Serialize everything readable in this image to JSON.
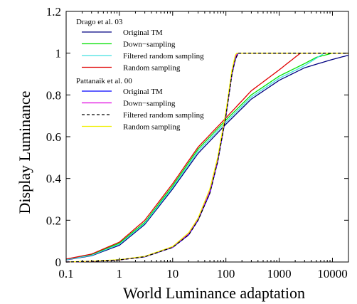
{
  "chart_data": {
    "type": "line",
    "title": "",
    "xlabel": "World Luminance adaptation",
    "ylabel": "Display Luminance",
    "x_scale": "log",
    "xlim": [
      0.1,
      20000
    ],
    "ylim": [
      0,
      1.2
    ],
    "grid": false,
    "legend_placement": "top-left",
    "x_ticks": [
      0.1,
      1,
      10,
      100,
      1000,
      10000
    ],
    "x_tick_labels": [
      "0.1",
      "1",
      "10",
      "100",
      "1000",
      "10000"
    ],
    "y_ticks": [
      0,
      0.2,
      0.4,
      0.6,
      0.8,
      1,
      1.2
    ],
    "y_tick_labels": [
      "0",
      "0.2",
      "0.4",
      "0.6",
      "0.8",
      "1",
      "1.2"
    ],
    "legend_groups": [
      {
        "heading": "Drago et al. 03",
        "entries": [
          {
            "name": "Original TM",
            "color": "#000080",
            "dash": "solid"
          },
          {
            "name": "Down−sampling",
            "color": "#00e000",
            "dash": "solid"
          },
          {
            "name": "Filtered random sampling",
            "color": "#40e0e0",
            "dash": "solid"
          },
          {
            "name": "Random sampling",
            "color": "#e00000",
            "dash": "solid"
          }
        ]
      },
      {
        "heading": "Pattanaik et al. 00",
        "entries": [
          {
            "name": "Original TM",
            "color": "#0000ff",
            "dash": "solid"
          },
          {
            "name": "Down−sampling",
            "color": "#e000e0",
            "dash": "solid"
          },
          {
            "name": "Filtered random sampling",
            "color": "#000000",
            "dash": "dashed"
          },
          {
            "name": "Random sampling",
            "color": "#f0f000",
            "dash": "solid"
          }
        ]
      }
    ],
    "series": [
      {
        "group": 0,
        "name": "Original TM",
        "color": "#000080",
        "dash": "solid",
        "x": [
          0.1,
          0.3,
          1,
          3,
          10,
          30,
          100,
          300,
          1000,
          3000,
          10000,
          20000
        ],
        "y": [
          0.01,
          0.03,
          0.08,
          0.18,
          0.35,
          0.52,
          0.66,
          0.78,
          0.87,
          0.93,
          0.97,
          0.99
        ]
      },
      {
        "group": 0,
        "name": "Down−sampling",
        "color": "#00e000",
        "dash": "solid",
        "x": [
          0.1,
          0.3,
          1,
          3,
          10,
          30,
          100,
          300,
          1000,
          3000,
          5000,
          10000,
          20000
        ],
        "y": [
          0.012,
          0.035,
          0.09,
          0.19,
          0.365,
          0.54,
          0.68,
          0.8,
          0.89,
          0.95,
          0.98,
          1.0,
          1.0
        ]
      },
      {
        "group": 0,
        "name": "Filtered random sampling",
        "color": "#40e0e0",
        "dash": "solid",
        "x": [
          0.1,
          0.3,
          1,
          3,
          10,
          30,
          100,
          300,
          1000,
          3000,
          7000,
          20000
        ],
        "y": [
          0.011,
          0.032,
          0.085,
          0.185,
          0.357,
          0.53,
          0.67,
          0.79,
          0.88,
          0.94,
          1.0,
          1.0
        ]
      },
      {
        "group": 0,
        "name": "Random sampling",
        "color": "#e00000",
        "dash": "solid",
        "x": [
          0.1,
          0.3,
          1,
          3,
          10,
          30,
          100,
          300,
          1000,
          2500,
          20000
        ],
        "y": [
          0.014,
          0.038,
          0.095,
          0.2,
          0.375,
          0.55,
          0.69,
          0.82,
          0.92,
          1.0,
          1.0
        ]
      },
      {
        "group": 1,
        "name": "Original TM",
        "color": "#0000ff",
        "dash": "solid",
        "x": [
          0.1,
          0.3,
          1,
          3,
          10,
          20,
          30,
          50,
          70,
          100,
          130,
          150,
          170,
          20000
        ],
        "y": [
          0.0,
          0.003,
          0.01,
          0.025,
          0.07,
          0.13,
          0.2,
          0.33,
          0.48,
          0.7,
          0.9,
          0.97,
          1.0,
          1.0
        ]
      },
      {
        "group": 1,
        "name": "Down−sampling",
        "color": "#e000e0",
        "dash": "solid",
        "x": [
          0.1,
          0.3,
          1,
          3,
          10,
          20,
          30,
          50,
          70,
          100,
          130,
          150,
          165,
          20000
        ],
        "y": [
          0.0,
          0.003,
          0.01,
          0.026,
          0.072,
          0.135,
          0.205,
          0.34,
          0.49,
          0.71,
          0.91,
          0.98,
          1.0,
          1.0
        ]
      },
      {
        "group": 1,
        "name": "Random sampling",
        "color": "#f0f000",
        "dash": "solid",
        "x": [
          0.1,
          0.3,
          1,
          3,
          10,
          20,
          30,
          50,
          70,
          100,
          130,
          150,
          160,
          20000
        ],
        "y": [
          0.0,
          0.004,
          0.011,
          0.027,
          0.074,
          0.14,
          0.21,
          0.35,
          0.5,
          0.72,
          0.92,
          0.99,
          1.0,
          1.0
        ]
      },
      {
        "group": 1,
        "name": "Filtered random sampling",
        "color": "#000000",
        "dash": "dashed",
        "x": [
          0.1,
          0.3,
          1,
          3,
          10,
          20,
          30,
          50,
          70,
          100,
          130,
          150,
          170,
          20000
        ],
        "y": [
          0.0,
          0.003,
          0.01,
          0.025,
          0.07,
          0.13,
          0.2,
          0.33,
          0.48,
          0.7,
          0.9,
          0.97,
          1.0,
          1.0
        ]
      }
    ]
  }
}
